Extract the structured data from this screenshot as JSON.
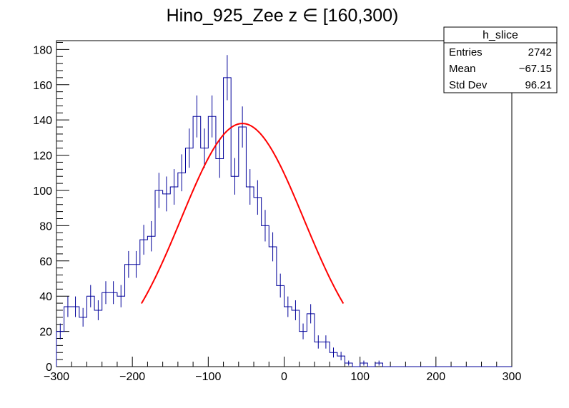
{
  "chart_data": {
    "type": "histogram",
    "title": "Hino_925_Zee z  ∈ [160,300)",
    "xlabel": "",
    "ylabel": "",
    "xlim": [
      -300,
      300
    ],
    "ylim": [
      0,
      185
    ],
    "x_ticks": [
      -300,
      -200,
      -100,
      0,
      100,
      200,
      300
    ],
    "x_tick_labels": [
      "−300",
      "−200",
      "−100",
      "0",
      "100",
      "200",
      "300"
    ],
    "y_ticks": [
      0,
      20,
      40,
      60,
      80,
      100,
      120,
      140,
      160,
      180
    ],
    "y_tick_labels": [
      "0",
      "20",
      "40",
      "60",
      "80",
      "100",
      "120",
      "140",
      "160",
      "180"
    ],
    "bin_width": 10,
    "series": [
      {
        "kind": "histogram",
        "color": "#000099",
        "x_start": -300,
        "values": [
          20,
          34,
          34,
          28,
          40,
          32,
          42,
          42,
          40,
          58,
          58,
          72,
          74,
          100,
          98,
          102,
          110,
          124,
          142,
          124,
          142,
          118,
          164,
          108,
          136,
          102,
          96,
          80,
          68,
          46,
          34,
          32,
          20,
          30,
          14,
          14,
          8,
          6,
          2,
          0,
          2,
          0,
          2,
          0,
          0,
          0,
          0,
          0,
          0,
          0,
          0,
          0,
          0,
          0,
          0,
          0,
          0,
          0,
          0,
          0
        ]
      },
      {
        "kind": "fit",
        "model": "gaussian",
        "color": "#ff0000",
        "amplitude": 138,
        "mean": -55,
        "sigma": 81,
        "x_range": [
          -188,
          78
        ]
      }
    ],
    "stats_box": {
      "title": "h_slice",
      "rows": [
        {
          "label": "Entries",
          "value": "2742"
        },
        {
          "label": "Mean",
          "value": "−67.15"
        },
        {
          "label": "Std Dev",
          "value": "96.21"
        }
      ]
    },
    "grid": false,
    "legend": "top-right"
  }
}
